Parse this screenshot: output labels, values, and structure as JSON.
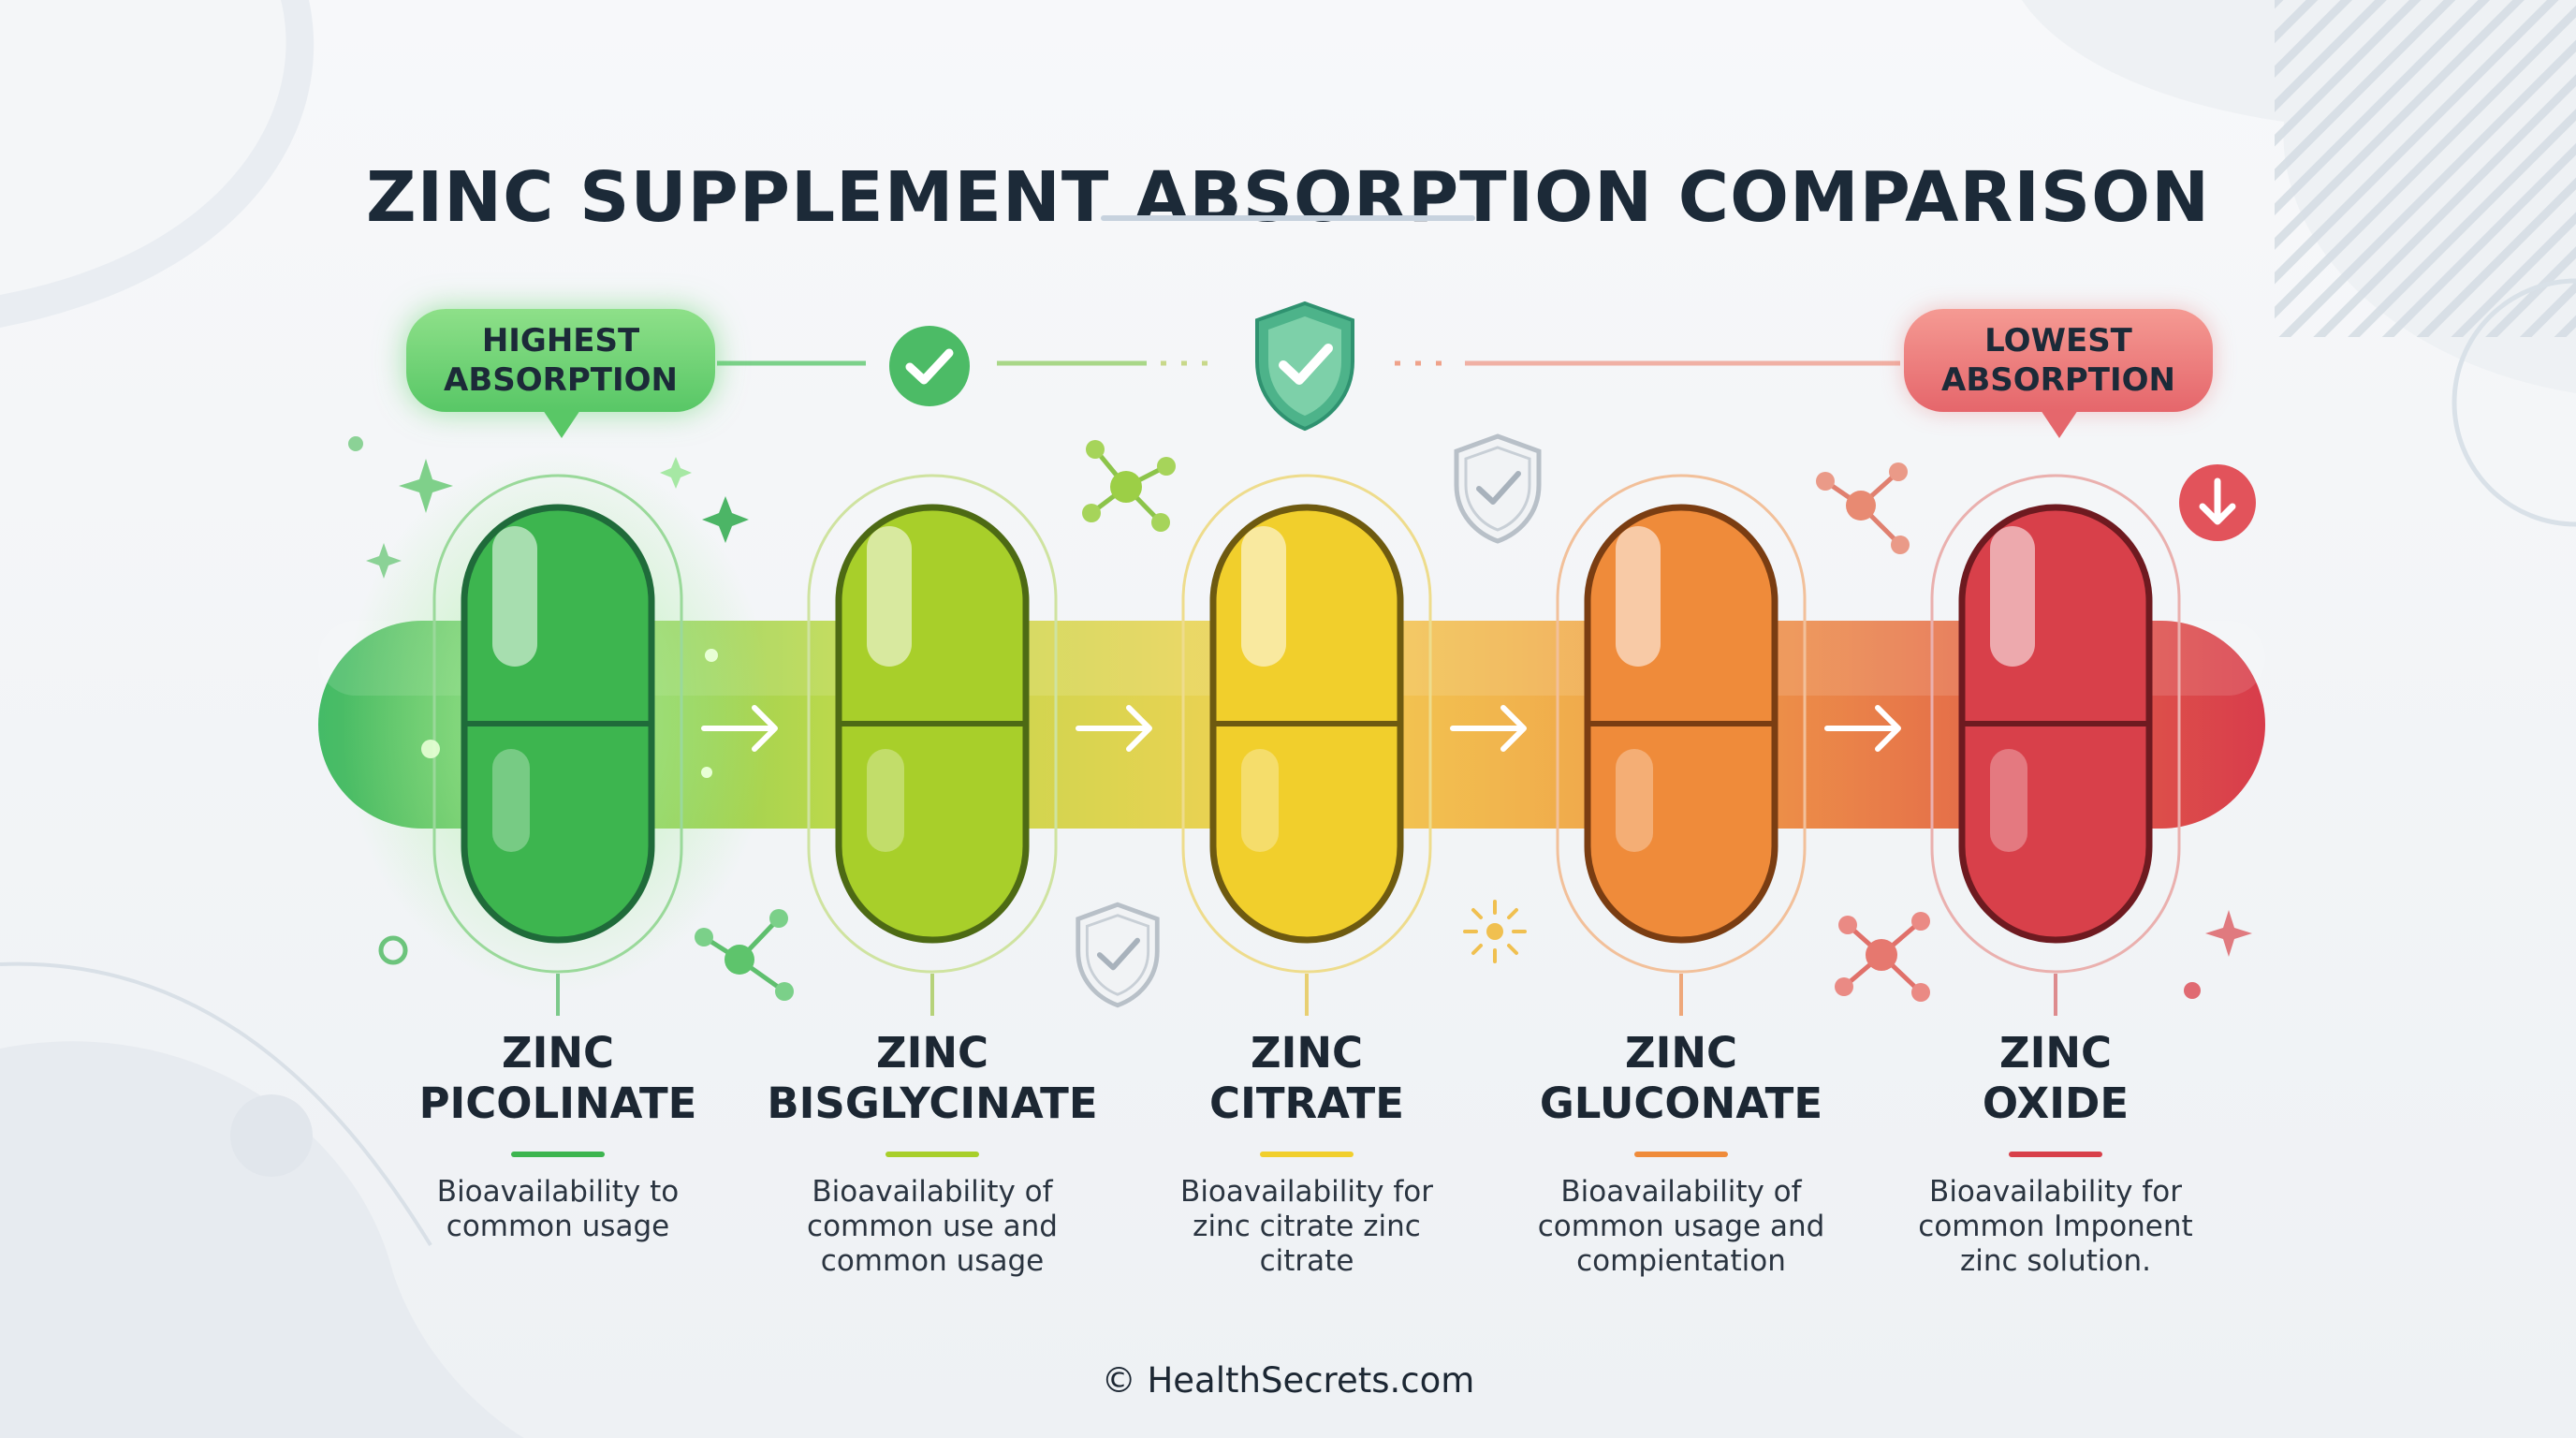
{
  "title": "ZINC SUPPLEMENT ABSORPTION COMPARISON",
  "badges": {
    "highest": [
      "HIGHEST",
      "ABSORPTION"
    ],
    "lowest": [
      "LOWEST",
      "ABSORPTION"
    ]
  },
  "supplements": [
    {
      "name": [
        "ZINC",
        "PICOLINATE"
      ],
      "desc": [
        "Bioavailability to",
        "common usage"
      ],
      "color": "#3db54f"
    },
    {
      "name": [
        "ZINC",
        "BISGLYCINATE"
      ],
      "desc": [
        "Bioavailability of",
        "common use and",
        "common usage"
      ],
      "color": "#a8cf2a"
    },
    {
      "name": [
        "ZINC",
        "CITRATE"
      ],
      "desc": [
        "Bioavailability for",
        "zinc citrate zinc",
        "citrate"
      ],
      "color": "#f1cf2c"
    },
    {
      "name": [
        "ZINC",
        "GLUCONATE"
      ],
      "desc": [
        "Bioavailability of",
        "common usage and",
        "compientation"
      ],
      "color": "#ef8b3a"
    },
    {
      "name": [
        "ZINC",
        "OXIDE"
      ],
      "desc": [
        "Bioavailability for",
        "common Imponent",
        "zinc solution."
      ],
      "color": "#d8404a"
    }
  ],
  "footer": "© HealthSecrets.com"
}
